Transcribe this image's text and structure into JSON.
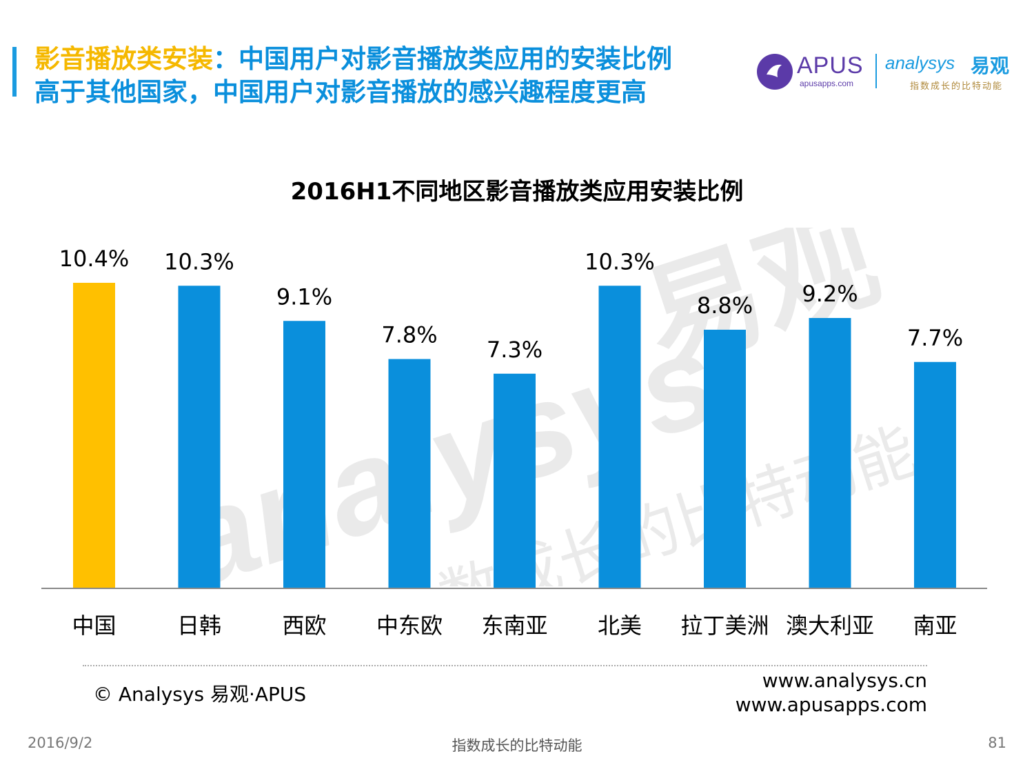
{
  "header": {
    "title_highlight": "影音播放类安装",
    "title_rest": "：中国用户对影音播放类应用的安装比例",
    "title_line2": "高于其他国家，中国用户对影音播放的感兴趣程度更高"
  },
  "logos": {
    "apus_name": "APUS",
    "apus_url": "apusapps.com",
    "analysys_name": "analysys",
    "analysys_cn": "易观",
    "analysys_slogan": "指数成长的比特动能"
  },
  "watermark": {
    "brand": "analysys",
    "cn": "易观",
    "slogan": "指数成长的比特动能"
  },
  "chart_data": {
    "type": "bar",
    "title": "2016H1不同地区影音播放类应用安装比例",
    "categories": [
      "中国",
      "日韩",
      "西欧",
      "中东欧",
      "东南亚",
      "北美",
      "拉丁美洲",
      "澳大利亚",
      "南亚"
    ],
    "values": [
      10.4,
      10.3,
      9.1,
      7.8,
      7.3,
      10.3,
      8.8,
      9.2,
      7.7
    ],
    "value_labels": [
      "10.4%",
      "10.3%",
      "9.1%",
      "7.8%",
      "7.3%",
      "10.3%",
      "8.8%",
      "9.2%",
      "7.7%"
    ],
    "unit": "%",
    "ylim": [
      0,
      10.4
    ],
    "highlight_index": 0,
    "colors": {
      "default": "#0a8fdc",
      "highlight": "#ffc000",
      "axis": "#888888"
    },
    "grid": false,
    "legend": "none"
  },
  "footer": {
    "copyright": "© Analysys 易观·APUS",
    "site1": "www.analysys.cn",
    "site2": "www.apusapps.com",
    "date": "2016/9/2",
    "slogan": "指数成长的比特动能",
    "page": "81"
  }
}
